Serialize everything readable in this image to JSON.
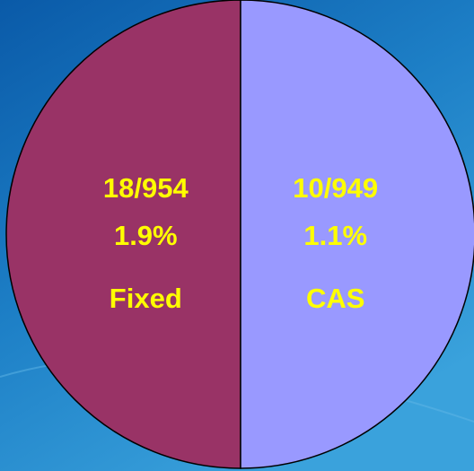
{
  "chart_data": {
    "type": "pie",
    "categories": [
      "Fixed",
      "CAS"
    ],
    "values": [
      50,
      50
    ],
    "colors": [
      "#993366",
      "#9999ff"
    ],
    "slice_labels": [
      [
        "18/954",
        "1.9%"
      ],
      [
        "10/949",
        "1.1%"
      ]
    ]
  }
}
